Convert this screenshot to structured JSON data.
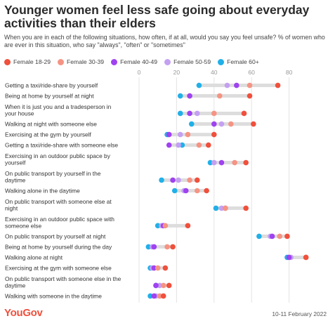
{
  "title": "Younger women feel less safe going about everyday activities than their elders",
  "subtitle": "When you are in each of the following situations, how often, if at all, would you say you feel unsafe? % of women who are ever in this situation, who say \"always\", \"often\" or \"sometimes\"",
  "footer": {
    "brand": "YouGov",
    "date": "10-11 February 2022"
  },
  "chart_data": {
    "type": "dot",
    "xlim": [
      0,
      100
    ],
    "xticks": [
      0,
      20,
      40,
      60,
      80
    ],
    "grid": true,
    "legend_position": "top",
    "series": [
      {
        "name": "Female 18-29",
        "color": "#f0503c"
      },
      {
        "name": "Female 30-39",
        "color": "#f59484"
      },
      {
        "name": "Female 40-49",
        "color": "#9f42f0"
      },
      {
        "name": "Female 50-59",
        "color": "#c4a0f2"
      },
      {
        "name": "Female 60+",
        "color": "#21b0e8"
      }
    ],
    "categories": [
      "Getting a taxi/ride-share by yourself",
      "Being at home by yourself at night",
      "When it is just you and a tradesperson in your house",
      "Walking at night with someone else",
      "Exercising at the gym by yourself",
      "Getting a taxi/ride-share with someone else",
      "Exercising in an outdoor public space by yourself",
      "On public transport by yourself in the daytime",
      "Walking alone in the daytime",
      "On public transport with someone else at night",
      "Exercising in an outdoor public space with someone else",
      "On public transport by yourself at night",
      "Being at home by yourself during the day",
      "Walking alone at night",
      "Exercising at the gym with someone else",
      "On public transport with someone else in the daytime",
      "Walking with someone in the daytime"
    ],
    "values": [
      [
        74,
        59,
        52,
        47,
        32
      ],
      [
        59,
        43,
        27,
        27,
        22
      ],
      [
        56,
        40,
        27,
        31,
        22
      ],
      [
        61,
        49,
        40,
        44,
        28
      ],
      [
        40,
        26,
        16,
        22,
        15
      ],
      [
        37,
        32,
        16,
        21,
        23
      ],
      [
        57,
        51,
        44,
        40,
        38
      ],
      [
        31,
        27,
        18,
        21,
        12
      ],
      [
        36,
        31,
        25,
        24,
        19
      ],
      [
        57,
        46,
        46,
        44,
        41
      ],
      [
        26,
        14,
        13,
        12,
        10
      ],
      [
        79,
        75,
        71,
        70,
        64
      ],
      [
        18,
        15,
        8,
        7,
        5
      ],
      [
        89,
        89,
        80,
        81,
        79
      ],
      [
        14,
        10,
        8,
        7,
        6
      ],
      [
        16,
        13,
        9,
        11,
        9
      ],
      [
        13,
        11,
        8,
        9,
        6
      ]
    ]
  }
}
